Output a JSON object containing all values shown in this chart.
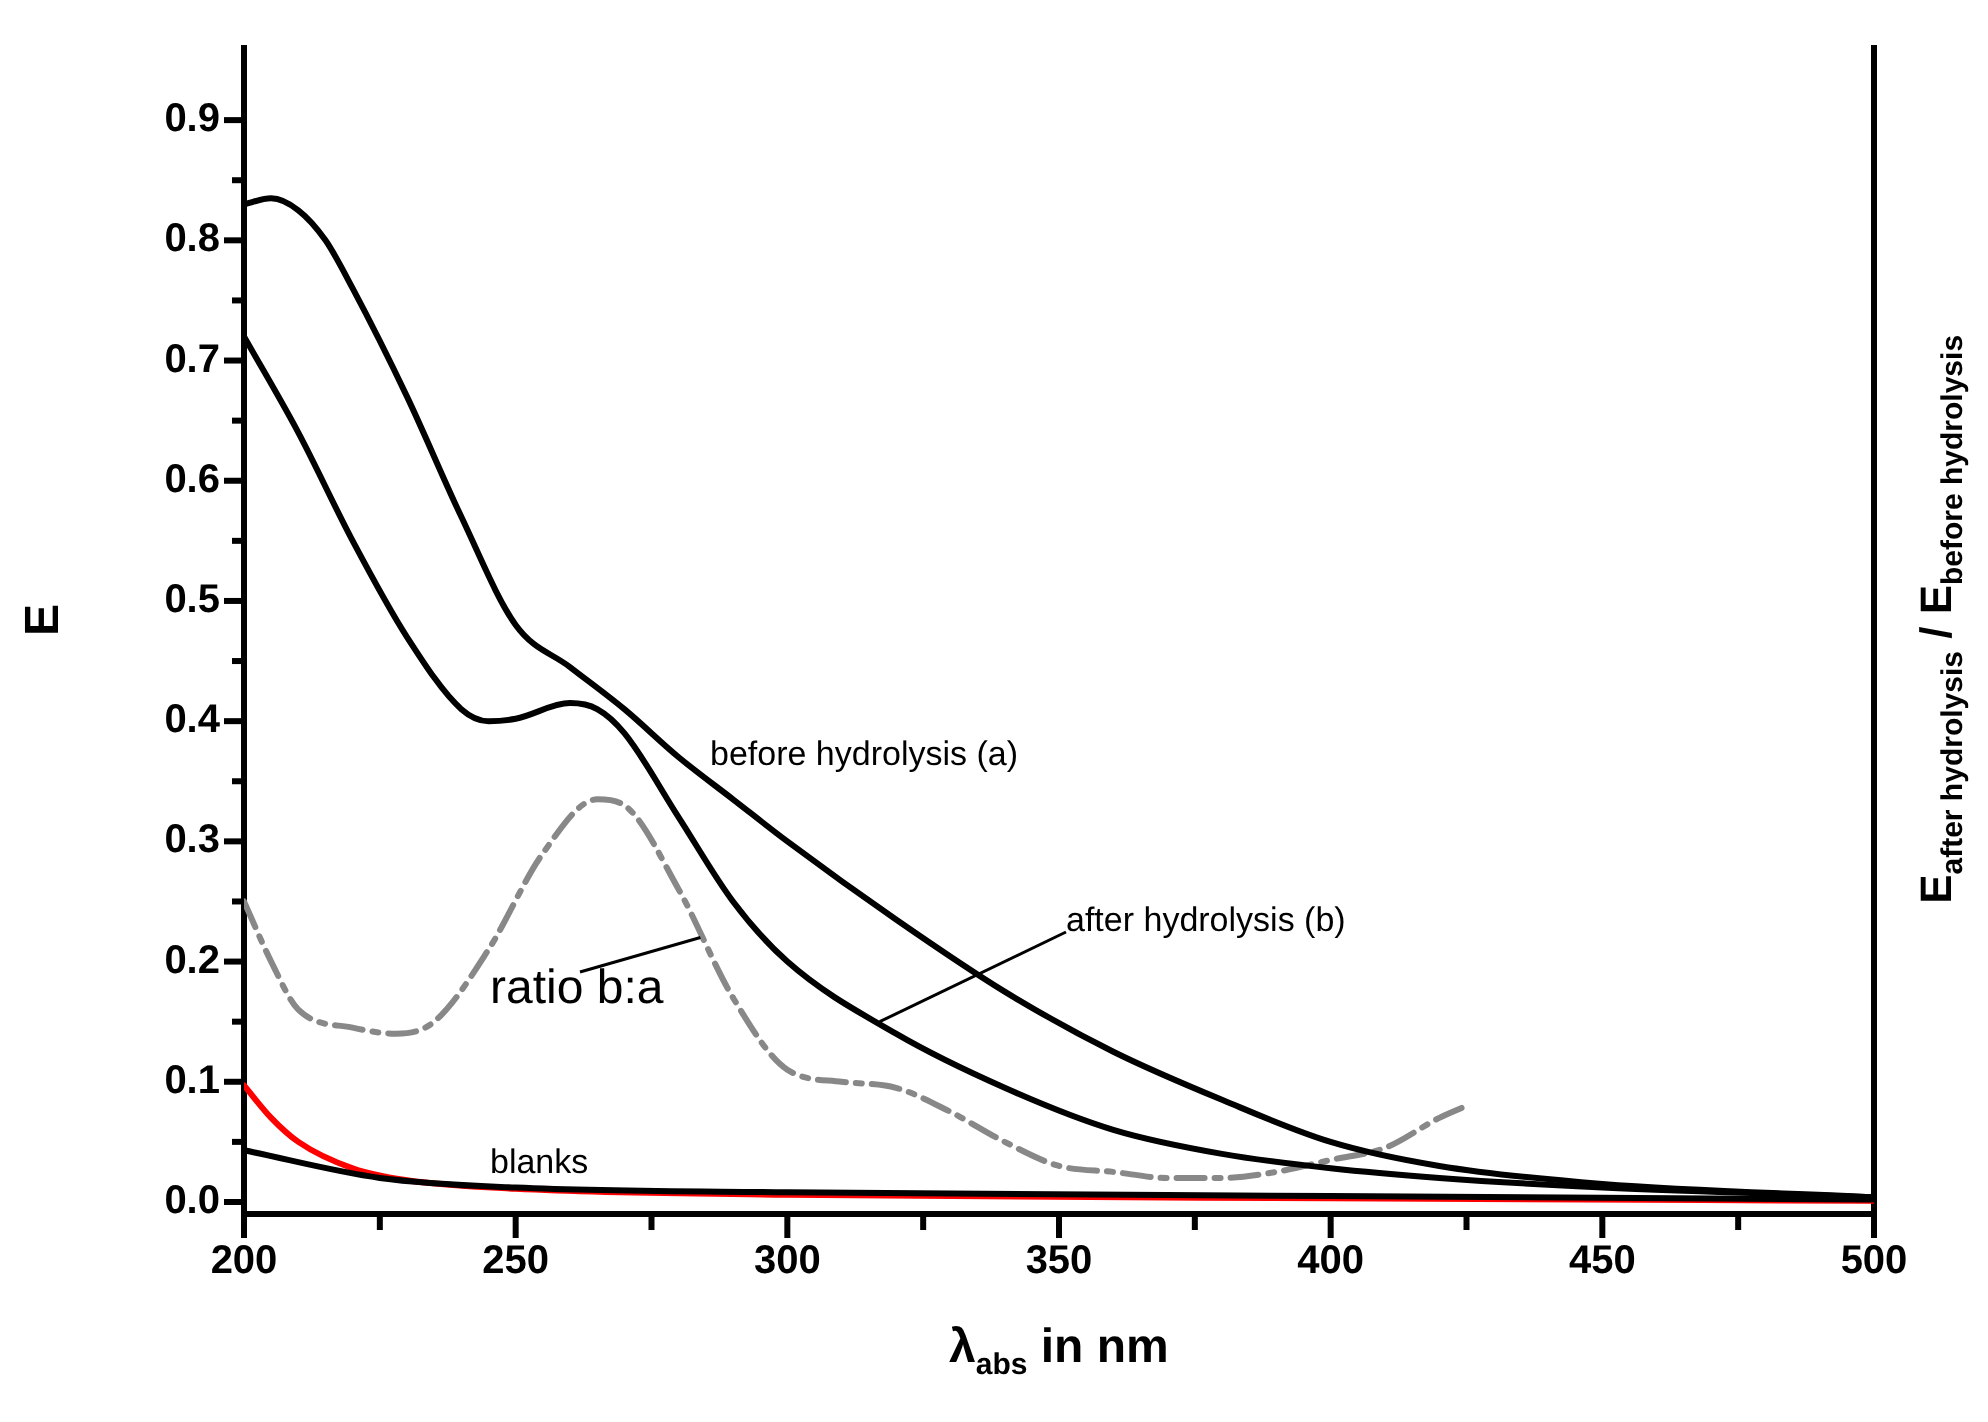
{
  "chart_data": {
    "type": "line",
    "xlabel": "λ$_{abs}$ in nm",
    "ylabel": "E",
    "y2label": "E$_{after hydrolysis}$ / E$_{before hydrolysis}$",
    "xlim": [
      200,
      500
    ],
    "xticks": [
      200,
      {
        "value": 225,
        "label": null
      },
      250,
      {
        "value": 275,
        "label": null
      },
      300,
      {
        "value": 325,
        "label": null
      },
      350,
      {
        "value": 375,
        "label": null
      },
      400,
      {
        "value": 425,
        "label": null
      },
      450,
      {
        "value": 475,
        "label": null
      },
      500
    ],
    "ylim": [
      -0.01,
      0.96
    ],
    "yticks": [
      "0.0",
      {
        "value": 0.05,
        "label": null
      },
      {
        "value": 0.1,
        "label": "0.1"
      },
      {
        "value": 0.15,
        "label": null
      },
      {
        "value": 0.2,
        "label": "0.2"
      },
      {
        "value": 0.25,
        "label": null
      },
      {
        "value": 0.3,
        "label": "0.3"
      },
      {
        "value": 0.35,
        "label": null
      },
      {
        "value": 0.4,
        "label": "0.4"
      },
      {
        "value": 0.45,
        "label": null
      },
      {
        "value": 0.5,
        "label": "0.5"
      },
      {
        "value": 0.55,
        "label": null
      },
      {
        "value": 0.6,
        "label": "0.6"
      },
      {
        "value": 0.65,
        "label": null
      },
      {
        "value": 0.7,
        "label": "0.7"
      },
      {
        "value": 0.75,
        "label": null
      },
      {
        "value": 0.8,
        "label": "0.8"
      },
      {
        "value": 0.85,
        "label": null
      },
      {
        "value": 0.9,
        "label": "0.9"
      }
    ],
    "grid": false,
    "legend": false,
    "marker": "none",
    "series": [
      {
        "color": "#000000",
        "line_style": "solid",
        "x": [
          200,
          205,
          210,
          215,
          220,
          230,
          240,
          250,
          260,
          270,
          280,
          290,
          300,
          320,
          340,
          360,
          380,
          400,
          420,
          450,
          500
        ],
        "values": [
          0.83,
          0.835,
          0.825,
          0.8,
          0.76,
          0.67,
          0.57,
          0.48,
          0.445,
          0.41,
          0.37,
          0.335,
          0.3,
          0.235,
          0.175,
          0.125,
          0.085,
          0.05,
          0.03,
          0.015,
          0.004
        ]
      },
      {
        "color": "#000000",
        "line_style": "solid",
        "x": [
          200,
          210,
          220,
          230,
          240,
          245,
          250,
          260,
          265,
          270,
          280,
          290,
          300,
          320,
          340,
          360,
          380,
          400,
          420,
          450,
          500
        ],
        "values": [
          0.72,
          0.64,
          0.55,
          0.47,
          0.41,
          0.4,
          0.402,
          0.415,
          0.41,
          0.39,
          0.32,
          0.25,
          0.2,
          0.14,
          0.095,
          0.06,
          0.04,
          0.028,
          0.02,
          0.012,
          0.004
        ]
      },
      {
        "color": "#888888",
        "line_style": "dashed",
        "x": [
          200,
          205,
          210,
          220,
          228,
          235,
          245,
          255,
          265,
          270,
          280,
          290,
          300,
          310,
          320,
          330,
          340,
          350,
          360,
          370,
          380,
          390,
          400,
          410,
          420,
          425
        ],
        "values": [
          0.25,
          0.2,
          0.16,
          0.145,
          0.14,
          0.15,
          0.21,
          0.29,
          0.335,
          0.33,
          0.26,
          0.17,
          0.11,
          0.1,
          0.095,
          0.075,
          0.05,
          0.03,
          0.025,
          0.02,
          0.02,
          0.025,
          0.035,
          0.045,
          0.07,
          0.08
        ]
      },
      {
        "color": "#000000",
        "line_style": "solid",
        "x": [
          200,
          225,
          250,
          300,
          400,
          500
        ],
        "values": [
          0.043,
          0.02,
          0.012,
          0.008,
          0.005,
          0.002
        ]
      },
      {
        "color": "#ff0000",
        "line_style": "solid",
        "x": [
          200,
          205,
          210,
          220,
          230,
          250,
          300,
          400,
          500
        ],
        "values": [
          0.097,
          0.07,
          0.05,
          0.028,
          0.018,
          0.011,
          0.006,
          0.003,
          0.001
        ]
      }
    ],
    "annotations": [
      "before hydrolysis (a)",
      {
        "text": "after hydrolysis (b)",
        "x": 317,
        "y": 0.15
      },
      {
        "text": "ratio b:a",
        "x": 284,
        "y": 0.22
      },
      "blanks"
    ]
  }
}
